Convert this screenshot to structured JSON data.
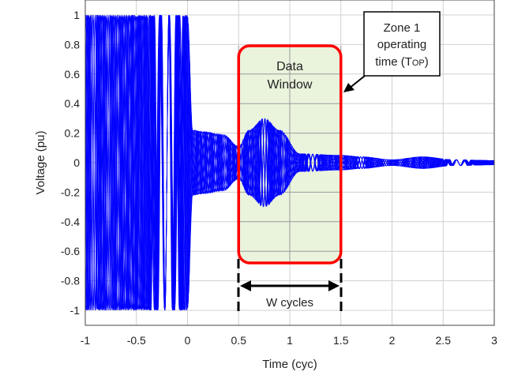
{
  "chart_data": {
    "type": "line",
    "xlabel": "Time (cyc)",
    "ylabel": "Voltage (pu)",
    "xlim": [
      -1,
      3
    ],
    "ylim": [
      -1,
      1
    ],
    "xticks": [
      -1,
      -0.5,
      0,
      0.5,
      1,
      1.5,
      2,
      2.5,
      3
    ],
    "xtick_labels": [
      "-1",
      "-0.5",
      "0",
      "0.5",
      "1",
      "1.5",
      "2",
      "2.5",
      "3"
    ],
    "yticks": [
      1,
      0.8,
      0.6,
      0.4,
      0.2,
      0,
      -0.2,
      -0.4,
      -0.6,
      -0.8,
      -1
    ],
    "ytick_labels": [
      "1",
      "0.8",
      "0.6",
      "0.4",
      "0.2",
      "0",
      "-0.2",
      "-0.4",
      "-0.6",
      "-0.8",
      "-1"
    ],
    "grid": true,
    "series_color": "#0000ff",
    "envelope": {
      "t": [
        -1,
        0,
        0.05,
        0.15,
        0.35,
        0.5,
        0.6,
        0.75,
        0.9,
        1.1,
        1.5,
        1.7,
        2.0,
        2.3,
        2.6,
        3.0
      ],
      "amp": [
        1,
        1,
        0.22,
        0.21,
        0.19,
        0.11,
        0.22,
        0.3,
        0.22,
        0.06,
        0.05,
        0.04,
        0.02,
        0.04,
        0.02,
        0.015
      ]
    },
    "annotations": {
      "data_window": {
        "label_line1": "Data",
        "label_line2": "Window",
        "t_start": 0.5,
        "t_end": 1.5,
        "color": "#ff0000",
        "fill": "#eaf3dc"
      },
      "span_label": "W cycles",
      "callout": {
        "line1": "Zone 1",
        "line2": "operating",
        "line3_prefix": "time (T",
        "line3_sub": "OP",
        "line3_suffix": ")"
      }
    }
  }
}
